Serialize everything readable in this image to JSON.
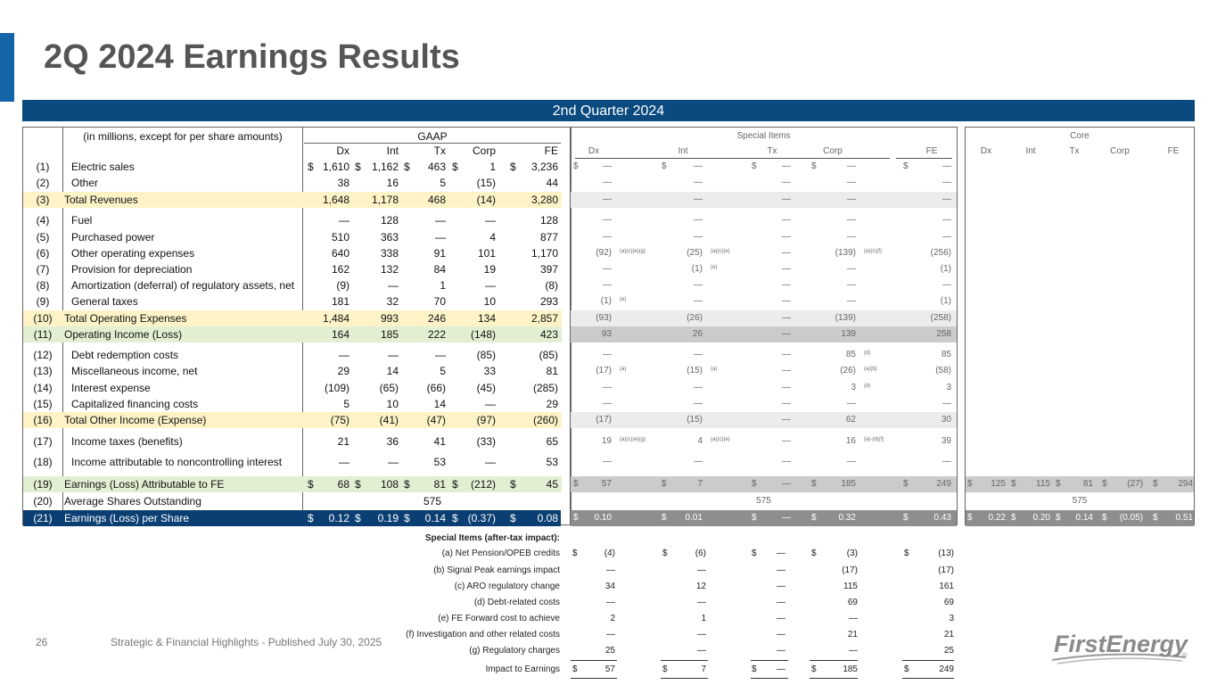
{
  "title": "2Q 2024 Earnings Results",
  "period": "2nd Quarter 2024",
  "units_note": "(in millions, except for per share amounts)",
  "groups": {
    "gaap": "GAAP",
    "special": "Special Items",
    "core": "Core"
  },
  "segments": [
    "Dx",
    "Int",
    "Tx",
    "Corp",
    "FE"
  ],
  "dollar": "$",
  "rows": [
    {
      "num": "(1)",
      "label": "Electric sales",
      "gaap": [
        "1,610",
        "1,162",
        "463",
        "1",
        "3,236"
      ],
      "special": [
        "—",
        "—",
        "—",
        "—",
        "—"
      ],
      "gd": true,
      "sd": true
    },
    {
      "num": "(2)",
      "label": "Other",
      "gaap": [
        "38",
        "16",
        "5",
        "(15)",
        "44"
      ],
      "special": [
        "—",
        "—",
        "—",
        "—",
        "—"
      ]
    },
    {
      "num": "(3)",
      "label": "Total Revenues",
      "gaap": [
        "1,648",
        "1,178",
        "468",
        "(14)",
        "3,280"
      ],
      "special": [
        "—",
        "—",
        "—",
        "—",
        "—"
      ]
    },
    {
      "num": "(4)",
      "label": "Fuel",
      "gaap": [
        "—",
        "128",
        "—",
        "—",
        "128"
      ],
      "special": [
        "—",
        "—",
        "—",
        "—",
        "—"
      ]
    },
    {
      "num": "(5)",
      "label": "Purchased power",
      "gaap": [
        "510",
        "363",
        "—",
        "4",
        "877"
      ],
      "special": [
        "—",
        "—",
        "—",
        "—",
        "—"
      ]
    },
    {
      "num": "(6)",
      "label": "Other operating expenses",
      "gaap": [
        "640",
        "338",
        "91",
        "101",
        "1,170"
      ],
      "special": [
        "(92)",
        "(25)",
        "—",
        "(139)",
        "(256)"
      ],
      "notes": [
        "(a)(c)(e)(g)",
        "(a)(c)(e)",
        "",
        "(a)(c)(f)",
        ""
      ]
    },
    {
      "num": "(7)",
      "label": "Provision for depreciation",
      "gaap": [
        "162",
        "132",
        "84",
        "19",
        "397"
      ],
      "special": [
        "—",
        "(1)",
        "—",
        "—",
        "(1)"
      ],
      "notes": [
        "",
        "(e)",
        "",
        "",
        ""
      ]
    },
    {
      "num": "(8)",
      "label": "Amortization (deferral) of regulatory assets, net",
      "gaap": [
        "(9)",
        "—",
        "1",
        "—",
        "(8)"
      ],
      "special": [
        "—",
        "—",
        "—",
        "—",
        "—"
      ]
    },
    {
      "num": "(9)",
      "label": "General taxes",
      "gaap": [
        "181",
        "32",
        "70",
        "10",
        "293"
      ],
      "special": [
        "(1)",
        "—",
        "—",
        "—",
        "(1)"
      ],
      "notes": [
        "(e)",
        "",
        "",
        "",
        ""
      ]
    },
    {
      "num": "(10)",
      "label": "Total Operating Expenses",
      "gaap": [
        "1,484",
        "993",
        "246",
        "134",
        "2,857"
      ],
      "special": [
        "(93)",
        "(26)",
        "—",
        "(139)",
        "(258)"
      ]
    },
    {
      "num": "(11)",
      "label": "Operating Income (Loss)",
      "gaap": [
        "164",
        "185",
        "222",
        "(148)",
        "423"
      ],
      "special": [
        "93",
        "26",
        "—",
        "139",
        "258"
      ]
    },
    {
      "num": "(12)",
      "label": "Debt redemption costs",
      "gaap": [
        "—",
        "—",
        "—",
        "(85)",
        "(85)"
      ],
      "special": [
        "—",
        "—",
        "—",
        "85",
        "85"
      ],
      "notes": [
        "",
        "",
        "",
        "(d)",
        ""
      ]
    },
    {
      "num": "(13)",
      "label": "Miscellaneous income, net",
      "gaap": [
        "29",
        "14",
        "5",
        "33",
        "81"
      ],
      "special": [
        "(17)",
        "(15)",
        "—",
        "(26)",
        "(58)"
      ],
      "notes": [
        "(a)",
        "(a)",
        "",
        "(a)(b)",
        ""
      ]
    },
    {
      "num": "(14)",
      "label": "Interest expense",
      "gaap": [
        "(109)",
        "(65)",
        "(66)",
        "(45)",
        "(285)"
      ],
      "special": [
        "—",
        "—",
        "—",
        "3",
        "3"
      ],
      "notes": [
        "",
        "",
        "",
        "(d)",
        ""
      ]
    },
    {
      "num": "(15)",
      "label": "Capitalized financing costs",
      "gaap": [
        "5",
        "10",
        "14",
        "—",
        "29"
      ],
      "special": [
        "—",
        "—",
        "—",
        "—",
        "—"
      ]
    },
    {
      "num": "(16)",
      "label": "Total Other Income (Expense)",
      "gaap": [
        "(75)",
        "(41)",
        "(47)",
        "(97)",
        "(260)"
      ],
      "special": [
        "(17)",
        "(15)",
        "—",
        "62",
        "30"
      ]
    },
    {
      "num": "(17)",
      "label": "Income taxes (benefits)",
      "gaap": [
        "21",
        "36",
        "41",
        "(33)",
        "65"
      ],
      "special": [
        "19",
        "4",
        "—",
        "16",
        "39"
      ],
      "notes": [
        "(a)(c)(e)(g)",
        "(a)(c)(e)",
        "",
        "(a)-(d)(f)",
        ""
      ]
    },
    {
      "num": "(18)",
      "label": "Income attributable to noncontrolling interest",
      "gaap": [
        "—",
        "—",
        "53",
        "—",
        "53"
      ],
      "special": [
        "—",
        "—",
        "—",
        "—",
        "—"
      ]
    },
    {
      "num": "(19)",
      "label": "Earnings (Loss) Attributable to FE",
      "gaap": [
        "68",
        "108",
        "81",
        "(212)",
        "45"
      ],
      "special": [
        "57",
        "7",
        "—",
        "185",
        "249"
      ],
      "core": [
        "125",
        "115",
        "81",
        "(27)",
        "294"
      ],
      "gd": true,
      "sd": true,
      "cd": true
    },
    {
      "num": "(20)",
      "label": "Average Shares Outstanding",
      "gaap_merged": "575",
      "special_merged": "575",
      "core_merged": "575"
    },
    {
      "num": "(21)",
      "label": "Earnings (Loss) per Share",
      "gaap": [
        "0.12",
        "0.19",
        "0.14",
        "(0.37)",
        "0.08"
      ],
      "special": [
        "0.10",
        "0.01",
        "—",
        "0.32",
        "0.43"
      ],
      "core": [
        "0.22",
        "0.20",
        "0.14",
        "(0.05)",
        "0.51"
      ],
      "gd": true,
      "sd": true,
      "cd": true
    }
  ],
  "footnotes": {
    "title": "Special Items (after-tax impact):",
    "rows": [
      {
        "label": "(a) Net Pension/OPEB credits",
        "values": [
          "(4)",
          "(6)",
          "—",
          "(3)",
          "(13)"
        ],
        "dollar": true
      },
      {
        "label": "(b) Signal Peak earnings impact",
        "values": [
          "—",
          "—",
          "—",
          "(17)",
          "(17)"
        ]
      },
      {
        "label": "(c) ARO regulatory change",
        "values": [
          "34",
          "12",
          "—",
          "115",
          "161"
        ]
      },
      {
        "label": "(d) Debt-related costs",
        "values": [
          "—",
          "—",
          "—",
          "69",
          "69"
        ]
      },
      {
        "label": "(e) FE Forward cost to achieve",
        "values": [
          "2",
          "1",
          "—",
          "—",
          "3"
        ]
      },
      {
        "label": "(f) Investigation and other related costs",
        "values": [
          "—",
          "—",
          "—",
          "21",
          "21"
        ]
      },
      {
        "label": "(g) Regulatory charges",
        "values": [
          "25",
          "—",
          "—",
          "—",
          "25"
        ]
      },
      {
        "label": "Impact to Earnings",
        "values": [
          "57",
          "7",
          "—",
          "185",
          "249"
        ],
        "dollar": true
      }
    ]
  },
  "footer": {
    "page": "26",
    "text": "Strategic & Financial Highlights - Published July 30, 2025"
  },
  "logo_text": "FirstEnergy",
  "colors": {
    "accent": "#1565a8",
    "header_bar": "#0a4a7e",
    "yellow": "#fdf3c7",
    "green": "#e2efd2",
    "navy": "#0b3f73",
    "gray_light": "#ececec",
    "gray_mid": "#cbcbcb",
    "gray_dark": "#8e8e8e"
  }
}
